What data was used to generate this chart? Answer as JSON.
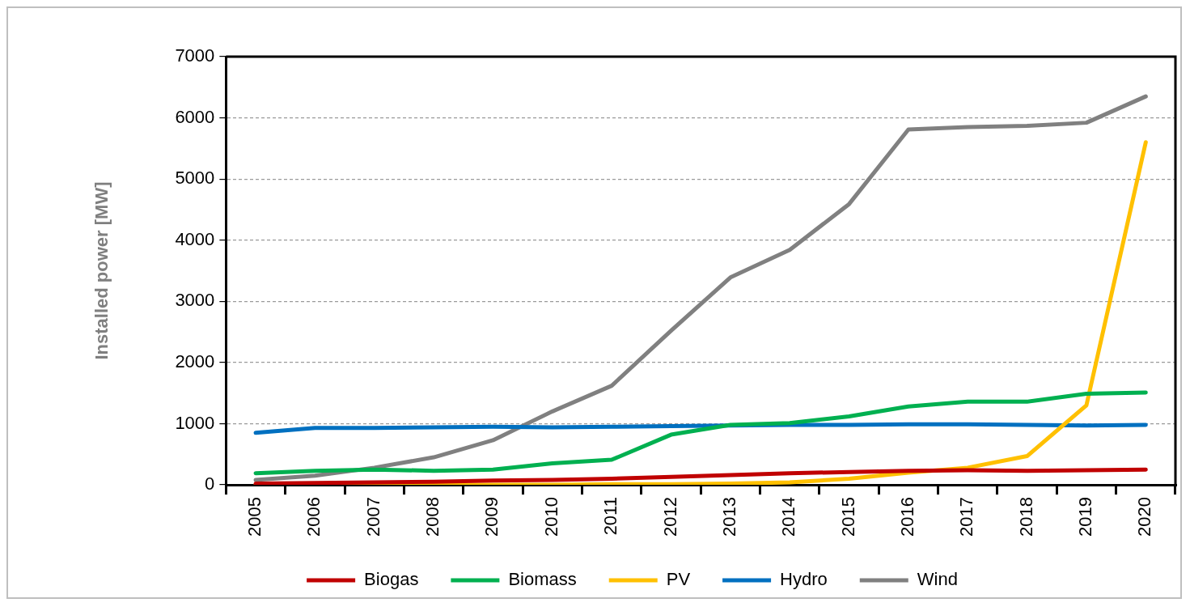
{
  "chart_data": {
    "type": "line",
    "ylabel": "Installed power [MW]",
    "categories": [
      "2005",
      "2006",
      "2007",
      "2008",
      "2009",
      "2010",
      "2011",
      "2012",
      "2013",
      "2014",
      "2015",
      "2016",
      "2017",
      "2018",
      "2019",
      "2020"
    ],
    "series": [
      {
        "name": "Biogas",
        "color": "#c00000",
        "values": [
          20,
          30,
          40,
          50,
          70,
          80,
          100,
          130,
          160,
          190,
          210,
          230,
          240,
          230,
          240,
          250
        ]
      },
      {
        "name": "Biomass",
        "color": "#00b050",
        "values": [
          190,
          230,
          250,
          230,
          250,
          350,
          410,
          820,
          980,
          1010,
          1120,
          1280,
          1360,
          1360,
          1490,
          1510
        ]
      },
      {
        "name": "PV",
        "color": "#ffc000",
        "values": [
          0,
          0,
          0,
          0,
          0,
          0,
          10,
          10,
          20,
          40,
          100,
          200,
          280,
          470,
          1300,
          5600
        ]
      },
      {
        "name": "Hydro",
        "color": "#0070c0",
        "values": [
          850,
          930,
          930,
          940,
          950,
          940,
          950,
          960,
          970,
          980,
          980,
          990,
          990,
          980,
          970,
          980
        ]
      },
      {
        "name": "Wind",
        "color": "#808080",
        "values": [
          80,
          150,
          280,
          450,
          730,
          1200,
          1620,
          2520,
          3390,
          3840,
          4590,
          5810,
          5850,
          5870,
          5920,
          6350
        ]
      }
    ],
    "ylim": [
      0,
      7000
    ],
    "yticks": [
      0,
      1000,
      2000,
      3000,
      4000,
      5000,
      6000,
      7000
    ],
    "grid": "y",
    "legend": "bottom",
    "marker": "none",
    "line_style": "solid"
  }
}
